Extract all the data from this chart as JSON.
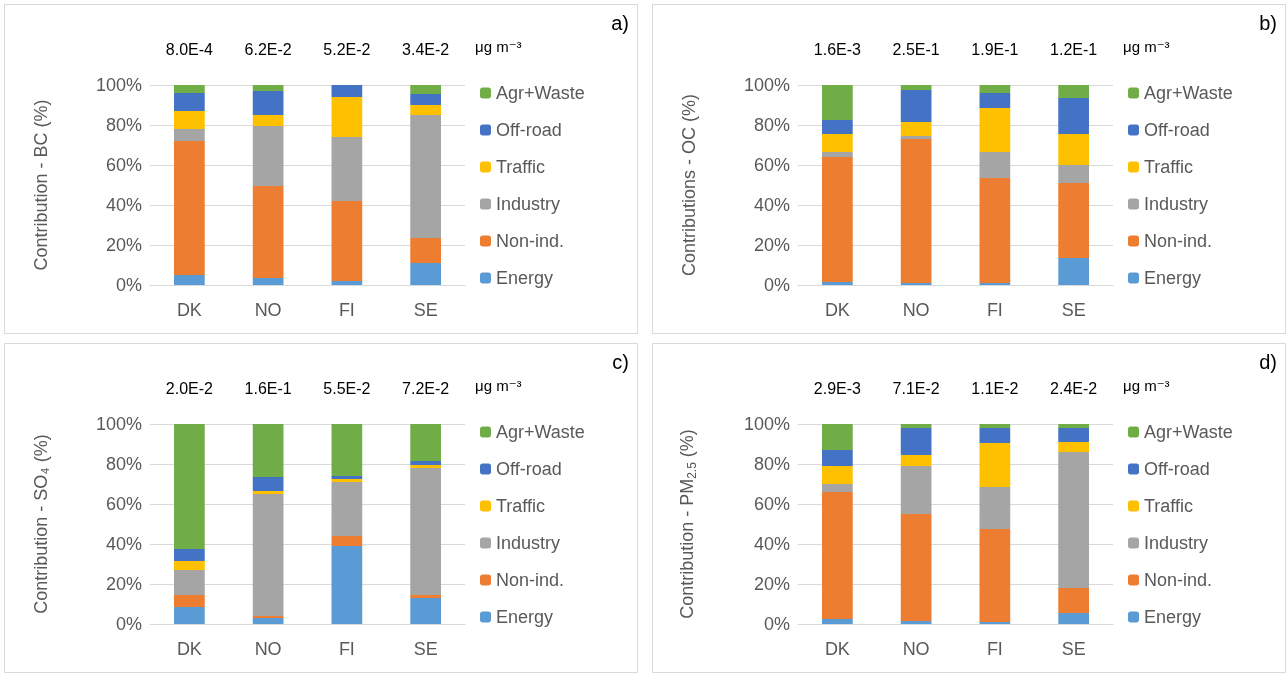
{
  "chart_data": [
    {
      "type": "bar",
      "stacked": true,
      "ylabel": "Contribution - BC (%)",
      "categories": [
        "DK",
        "NO",
        "FI",
        "SE"
      ],
      "annotations": [
        "8.0E-4",
        "6.2E-2",
        "5.2E-2",
        "3.4E-2",
        "μg m⁻³",
        "a)"
      ],
      "ylim": [
        0,
        100
      ],
      "yticks": [
        {
          "value": 0,
          "label": "0%"
        },
        {
          "value": 20,
          "label": "20%"
        },
        {
          "value": 40,
          "label": "40%"
        },
        {
          "value": 60,
          "label": "60%"
        },
        {
          "value": 80,
          "label": "80%"
        },
        {
          "value": 100,
          "label": "100%"
        }
      ],
      "grid": "y",
      "legend": "right",
      "series": [
        {
          "name": "Energy",
          "color": "#5b9bd5",
          "values": [
            5,
            3.5,
            2,
            11
          ]
        },
        {
          "name": "Non-ind.",
          "color": "#ed7d31",
          "values": [
            67,
            46,
            40,
            12.5
          ]
        },
        {
          "name": "Industry",
          "color": "#a5a5a5",
          "values": [
            6,
            30,
            32,
            61.5
          ]
        },
        {
          "name": "Traffic",
          "color": "#ffc000",
          "values": [
            9,
            5.5,
            20,
            5
          ]
        },
        {
          "name": "Off-road",
          "color": "#4472c4",
          "values": [
            9,
            12,
            6,
            5.5
          ]
        },
        {
          "name": "Agr+Waste",
          "color": "#70ad47",
          "values": [
            4,
            3,
            0,
            4.5
          ]
        }
      ]
    },
    {
      "type": "bar",
      "stacked": true,
      "ylabel": "Contributions - OC (%)",
      "categories": [
        "DK",
        "NO",
        "FI",
        "SE"
      ],
      "annotations": [
        "1.6E-3",
        "2.5E-1",
        "1.9E-1",
        "1.2E-1",
        "μg m⁻³",
        "b)"
      ],
      "ylim": [
        0,
        100
      ],
      "yticks": [
        {
          "value": 0,
          "label": "0%"
        },
        {
          "value": 20,
          "label": "20%"
        },
        {
          "value": 40,
          "label": "40%"
        },
        {
          "value": 60,
          "label": "60%"
        },
        {
          "value": 80,
          "label": "80%"
        },
        {
          "value": 100,
          "label": "100%"
        }
      ],
      "grid": "y",
      "legend": "right",
      "series": [
        {
          "name": "Energy",
          "color": "#5b9bd5",
          "values": [
            1.5,
            1,
            1,
            13.5
          ]
        },
        {
          "name": "Non-ind.",
          "color": "#ed7d31",
          "values": [
            62.5,
            72,
            52.5,
            37.5
          ]
        },
        {
          "name": "Industry",
          "color": "#a5a5a5",
          "values": [
            2.5,
            1.5,
            13,
            9
          ]
        },
        {
          "name": "Traffic",
          "color": "#ffc000",
          "values": [
            9,
            7,
            22,
            15.5
          ]
        },
        {
          "name": "Off-road",
          "color": "#4472c4",
          "values": [
            7,
            16,
            7.5,
            18
          ]
        },
        {
          "name": "Agr+Waste",
          "color": "#70ad47",
          "values": [
            17.5,
            2.5,
            4,
            6.5
          ]
        }
      ]
    },
    {
      "type": "bar",
      "stacked": true,
      "ylabel": "Contribution - SO₄ (%)",
      "categories": [
        "DK",
        "NO",
        "FI",
        "SE"
      ],
      "annotations": [
        "2.0E-2",
        "1.6E-1",
        "5.5E-2",
        "7.2E-2",
        "μg m⁻³",
        "c)"
      ],
      "ylim": [
        0,
        100
      ],
      "yticks": [
        {
          "value": 0,
          "label": "0%"
        },
        {
          "value": 20,
          "label": "20%"
        },
        {
          "value": 40,
          "label": "40%"
        },
        {
          "value": 60,
          "label": "60%"
        },
        {
          "value": 80,
          "label": "80%"
        },
        {
          "value": 100,
          "label": "100%"
        }
      ],
      "grid": "y",
      "legend": "right",
      "series": [
        {
          "name": "Energy",
          "color": "#5b9bd5",
          "values": [
            8.5,
            3,
            39,
            13
          ]
        },
        {
          "name": "Non-ind.",
          "color": "#ed7d31",
          "values": [
            6,
            1,
            5,
            1.5
          ]
        },
        {
          "name": "Industry",
          "color": "#a5a5a5",
          "values": [
            12.5,
            61,
            27,
            63.5
          ]
        },
        {
          "name": "Traffic",
          "color": "#ffc000",
          "values": [
            4.5,
            1.5,
            1.5,
            1.5
          ]
        },
        {
          "name": "Off-road",
          "color": "#4472c4",
          "values": [
            6,
            7,
            1.5,
            2
          ]
        },
        {
          "name": "Agr+Waste",
          "color": "#70ad47",
          "values": [
            62.5,
            26.5,
            26,
            18.5
          ]
        }
      ]
    },
    {
      "type": "bar",
      "stacked": true,
      "ylabel": "Contribution - PM$_{2.5}$ (%)",
      "categories": [
        "DK",
        "NO",
        "FI",
        "SE"
      ],
      "annotations": [
        "2.9E-3",
        "7.1E-2",
        "1.1E-2",
        "2.4E-2",
        "μg m⁻³",
        "d)"
      ],
      "ylim": [
        0,
        100
      ],
      "yticks": [
        {
          "value": 0,
          "label": "0%"
        },
        {
          "value": 20,
          "label": "20%"
        },
        {
          "value": 40,
          "label": "40%"
        },
        {
          "value": 60,
          "label": "60%"
        },
        {
          "value": 80,
          "label": "80%"
        },
        {
          "value": 100,
          "label": "100%"
        }
      ],
      "grid": "y",
      "legend": "right",
      "series": [
        {
          "name": "Energy",
          "color": "#5b9bd5",
          "values": [
            2.5,
            1.5,
            1,
            5.5
          ]
        },
        {
          "name": "Non-ind.",
          "color": "#ed7d31",
          "values": [
            63.5,
            53.5,
            46.5,
            12.5
          ]
        },
        {
          "name": "Industry",
          "color": "#a5a5a5",
          "values": [
            4,
            24,
            21,
            68
          ]
        },
        {
          "name": "Traffic",
          "color": "#ffc000",
          "values": [
            9,
            5.5,
            22,
            5
          ]
        },
        {
          "name": "Off-road",
          "color": "#4472c4",
          "values": [
            8,
            13.5,
            7.5,
            7
          ]
        },
        {
          "name": "Agr+Waste",
          "color": "#70ad47",
          "values": [
            13,
            2,
            2,
            2
          ]
        }
      ]
    }
  ]
}
